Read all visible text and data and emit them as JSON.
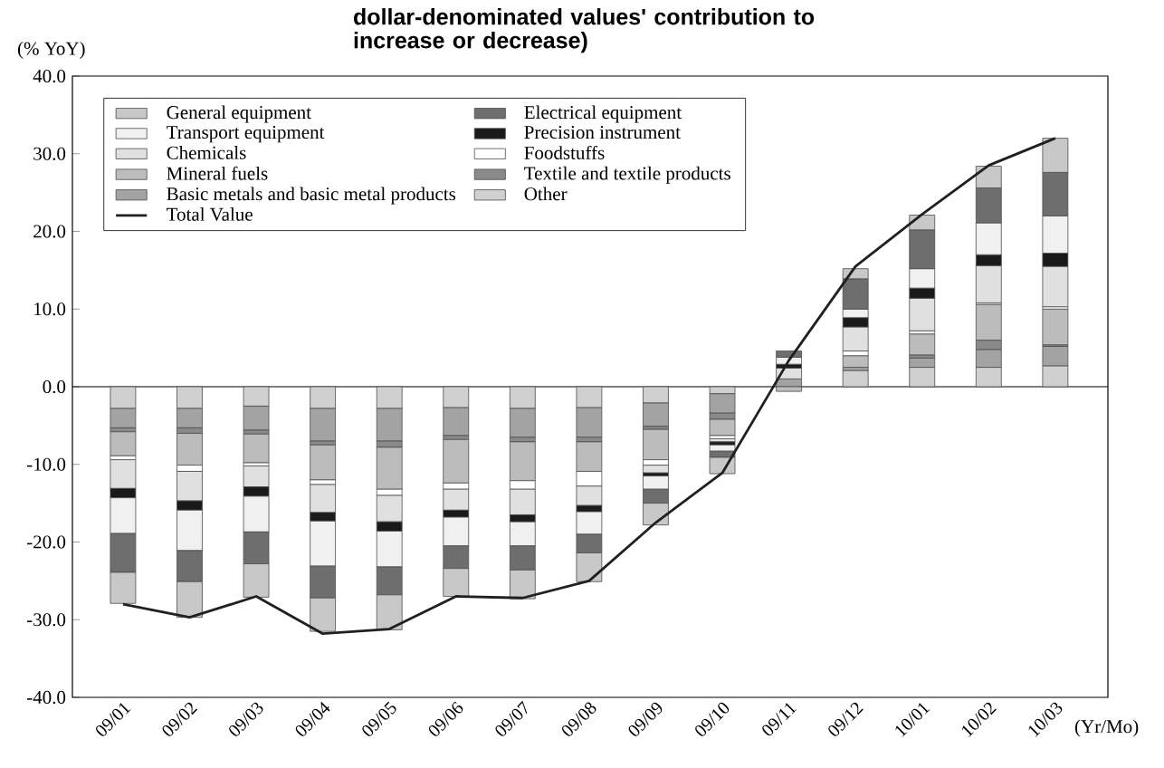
{
  "chart_data": {
    "type": "bar",
    "stacked": true,
    "title": "dollar-denominated values' contribution to increase or decrease)",
    "ylabel": "(% YoY)",
    "xlabel": "(Yr/Mo)",
    "categories": [
      "09/01",
      "09/02",
      "09/03",
      "09/04",
      "09/05",
      "09/06",
      "09/07",
      "09/08",
      "09/09",
      "09/10",
      "09/11",
      "09/12",
      "10/01",
      "10/02",
      "10/03"
    ],
    "ylim": [
      -40,
      40
    ],
    "yticks": [
      {
        "value": -40,
        "label": "-40.0"
      },
      {
        "value": -30,
        "label": "-30.0"
      },
      {
        "value": -20,
        "label": "-20.0"
      },
      {
        "value": -10,
        "label": "-10.0"
      },
      {
        "value": 0,
        "label": "0.0"
      },
      {
        "value": 10,
        "label": "10.0"
      },
      {
        "value": 20,
        "label": "20.0"
      },
      {
        "value": 30,
        "label": "30.0"
      },
      {
        "value": 40,
        "label": "40.0"
      }
    ],
    "legend": "top left",
    "series": [
      {
        "name": "Other",
        "color": "#d0d0d0",
        "values": [
          -2.8,
          -2.8,
          -2.5,
          -2.8,
          -2.8,
          -2.7,
          -2.8,
          -2.7,
          -2.1,
          -0.9,
          null,
          2.1,
          2.5,
          2.5,
          2.7
        ]
      },
      {
        "name": "Basic metals and basic metal products",
        "color": "#a3a3a3",
        "values": [
          -2.5,
          -2.5,
          -3.1,
          -4.2,
          -4.2,
          -3.6,
          -3.7,
          -3.8,
          -3.0,
          -2.5,
          1.0,
          0.4,
          1.2,
          2.3,
          2.5
        ]
      },
      {
        "name": "Textile and textile products",
        "color": "#8a8a8a",
        "values": [
          -0.5,
          -0.7,
          -0.5,
          -0.5,
          -0.8,
          -0.5,
          -0.6,
          -0.6,
          -0.4,
          -0.8,
          null,
          null,
          0.4,
          1.2,
          0.2
        ]
      },
      {
        "name": "Mineral fuels",
        "color": "#bcbcbc",
        "values": [
          -3.1,
          -4.1,
          -3.7,
          -4.5,
          -5.4,
          -5.6,
          -5.0,
          -3.8,
          -3.9,
          -2.1,
          -0.6,
          1.5,
          2.7,
          4.6,
          4.6
        ]
      },
      {
        "name": "Foodstuffs",
        "color": "#ffffff",
        "values": [
          -0.5,
          -0.8,
          -0.4,
          -0.6,
          -0.8,
          -0.8,
          -1.1,
          -1.9,
          -0.7,
          -0.4,
          0,
          0.6,
          0.4,
          0.2,
          0.3
        ]
      },
      {
        "name": "Chemicals",
        "color": "#e0e0e0",
        "values": [
          -3.7,
          -3.8,
          -2.7,
          -3.6,
          -3.4,
          -2.7,
          -3.3,
          -2.5,
          -1.0,
          -0.4,
          1.4,
          3.1,
          4.2,
          4.8,
          5.2
        ]
      },
      {
        "name": "Precision instrument",
        "color": "#1a1a1a",
        "values": [
          -1.2,
          -1.2,
          -1.2,
          -1.1,
          -1.2,
          -0.9,
          -0.9,
          -0.8,
          -0.4,
          -0.4,
          0.5,
          1.2,
          1.3,
          1.4,
          1.7
        ]
      },
      {
        "name": "Transport equipment",
        "color": "#f0f0f0",
        "values": [
          -4.6,
          -5.2,
          -4.6,
          -5.8,
          -4.6,
          -3.7,
          -3.1,
          -2.9,
          -1.7,
          -0.8,
          0.9,
          1.1,
          2.5,
          4.1,
          4.8
        ]
      },
      {
        "name": "Electrical equipment",
        "color": "#6e6e6e",
        "values": [
          -5.0,
          -4.0,
          -4.1,
          -4.1,
          -3.6,
          -2.9,
          -3.1,
          -2.4,
          -1.8,
          -0.8,
          0.8,
          3.9,
          5.0,
          4.5,
          5.6
        ]
      },
      {
        "name": "General equipment",
        "color": "#c8c8c8",
        "values": [
          -4.0,
          -4.6,
          -4.3,
          -4.3,
          -4.5,
          -3.6,
          -3.7,
          -3.7,
          -2.8,
          -2.1,
          0,
          1.3,
          1.9,
          2.8,
          4.4
        ]
      },
      {
        "name": "Total Value",
        "type": "line",
        "color": "#231f20",
        "values": [
          -28.0,
          -29.7,
          -27.0,
          -31.8,
          -31.2,
          -27.0,
          -27.2,
          -25.0,
          -17.5,
          -11.1,
          3.4,
          15.5,
          22.2,
          28.5,
          32.0
        ]
      }
    ]
  }
}
